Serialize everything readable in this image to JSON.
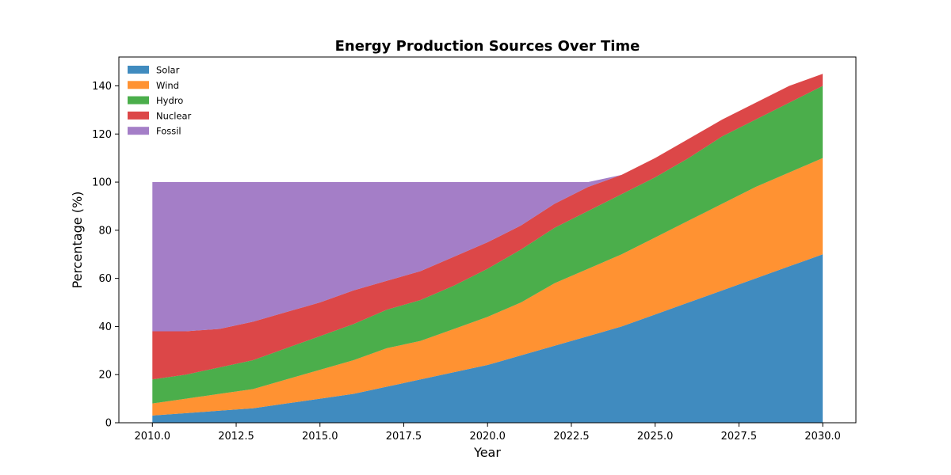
{
  "chart_data": {
    "type": "area",
    "stacked": true,
    "title": "Energy Production Sources Over Time",
    "xlabel": "Year",
    "ylabel": "Percentage (%)",
    "x": [
      2010,
      2011,
      2012,
      2013,
      2014,
      2015,
      2016,
      2017,
      2018,
      2019,
      2020,
      2021,
      2022,
      2023,
      2024,
      2025,
      2026,
      2027,
      2028,
      2029,
      2030
    ],
    "xlim": [
      2009,
      2030.99
    ],
    "ylim": [
      0,
      152
    ],
    "xticks": [
      2010,
      2012.5,
      2015,
      2017.5,
      2020,
      2022.5,
      2025,
      2027.5,
      2030
    ],
    "xtick_labels": [
      "2010.0",
      "2012.5",
      "2015.0",
      "2017.5",
      "2020.0",
      "2022.5",
      "2025.0",
      "2027.5",
      "2030.0"
    ],
    "yticks": [
      0,
      20,
      40,
      60,
      80,
      100,
      120,
      140
    ],
    "ytick_labels": [
      "0",
      "20",
      "40",
      "60",
      "80",
      "100",
      "120",
      "140"
    ],
    "grid": false,
    "legend_position": "top-left",
    "series": [
      {
        "name": "Solar",
        "color": "#1f77b4",
        "values": [
          3,
          4,
          5,
          6,
          8,
          10,
          12,
          15,
          18,
          21,
          24,
          28,
          32,
          36,
          40,
          45,
          50,
          55,
          60,
          65,
          70
        ]
      },
      {
        "name": "Wind",
        "color": "#ff7f0e",
        "values": [
          5,
          6,
          7,
          8,
          10,
          12,
          14,
          16,
          16,
          18,
          20,
          22,
          26,
          28,
          30,
          32,
          34,
          36,
          38,
          39,
          40
        ]
      },
      {
        "name": "Hydro",
        "color": "#2ca02c",
        "values": [
          10,
          10,
          11,
          12,
          13,
          14,
          15,
          16,
          17,
          18,
          20,
          22,
          23,
          24,
          25,
          25,
          26,
          28,
          28,
          29,
          30
        ]
      },
      {
        "name": "Nuclear",
        "color": "#d62728",
        "values": [
          20,
          18,
          16,
          16,
          15,
          14,
          14,
          12,
          12,
          12,
          11,
          10,
          10,
          10,
          8,
          8,
          8,
          7,
          7,
          7,
          5
        ]
      },
      {
        "name": "Fossil",
        "color": "#9467bd",
        "values": [
          62,
          62,
          61,
          58,
          54,
          50,
          45,
          41,
          37,
          31,
          25,
          18,
          9,
          2,
          0,
          0,
          0,
          0,
          0,
          0,
          0
        ]
      }
    ]
  }
}
